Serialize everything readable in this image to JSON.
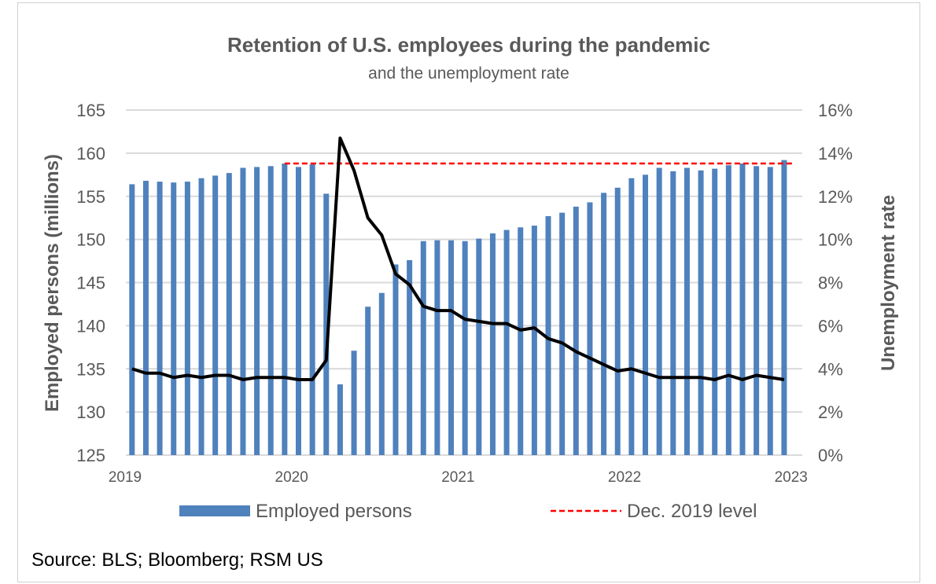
{
  "chart_data": {
    "type": "bar+line",
    "title": "Retention of U.S. employees during the pandemic",
    "subtitle": "and the unemployment rate",
    "ylabel": "Employed persons (millions)",
    "y2label": "Unemployment rate",
    "ylim": [
      125,
      165
    ],
    "y2lim": [
      0,
      16
    ],
    "yticks": [
      "125",
      "130",
      "135",
      "140",
      "145",
      "150",
      "155",
      "160",
      "165"
    ],
    "y2ticks": [
      "0%",
      "2%",
      "4%",
      "6%",
      "8%",
      "10%",
      "12%",
      "14%",
      "16%"
    ],
    "xticks": [
      "2019",
      "2020",
      "2021",
      "2022",
      "2023"
    ],
    "grid": true,
    "legend_placement": "bottom",
    "source": "Source: BLS; Bloomberg; RSM US",
    "colors": {
      "bars": "#4f81bd",
      "line": "#000000",
      "reference": "#ff0000",
      "grid": "#d9d9d9",
      "text": "#595959"
    },
    "series": [
      {
        "name": "Employed persons",
        "type": "bar",
        "axis": "left",
        "values": [
          156.4,
          156.8,
          156.7,
          156.6,
          156.7,
          157.1,
          157.4,
          157.7,
          158.3,
          158.4,
          158.5,
          158.8,
          158.4,
          158.7,
          155.3,
          133.2,
          137.1,
          142.2,
          143.8,
          147.1,
          147.6,
          149.8,
          149.9,
          149.9,
          149.8,
          150.1,
          150.7,
          151.1,
          151.4,
          151.6,
          152.7,
          153.1,
          153.8,
          154.3,
          155.4,
          156.0,
          157.1,
          157.5,
          158.3,
          157.9,
          158.3,
          158.0,
          158.2,
          158.6,
          158.8,
          158.5,
          158.4,
          159.2
        ]
      },
      {
        "type": "line",
        "axis": "right",
        "unit": "%",
        "values": [
          4.0,
          3.8,
          3.8,
          3.6,
          3.7,
          3.6,
          3.7,
          3.7,
          3.5,
          3.6,
          3.6,
          3.6,
          3.5,
          3.5,
          4.4,
          14.7,
          13.2,
          11.0,
          10.2,
          8.4,
          7.9,
          6.9,
          6.7,
          6.7,
          6.3,
          6.2,
          6.1,
          6.1,
          5.8,
          5.9,
          5.4,
          5.2,
          4.8,
          4.5,
          4.2,
          3.9,
          4.0,
          3.8,
          3.6,
          3.6,
          3.6,
          3.6,
          3.5,
          3.7,
          3.5,
          3.7,
          3.6,
          3.5
        ]
      },
      {
        "name": "Dec. 2019 level",
        "type": "reference-line",
        "axis": "left",
        "value": 158.8
      }
    ]
  }
}
